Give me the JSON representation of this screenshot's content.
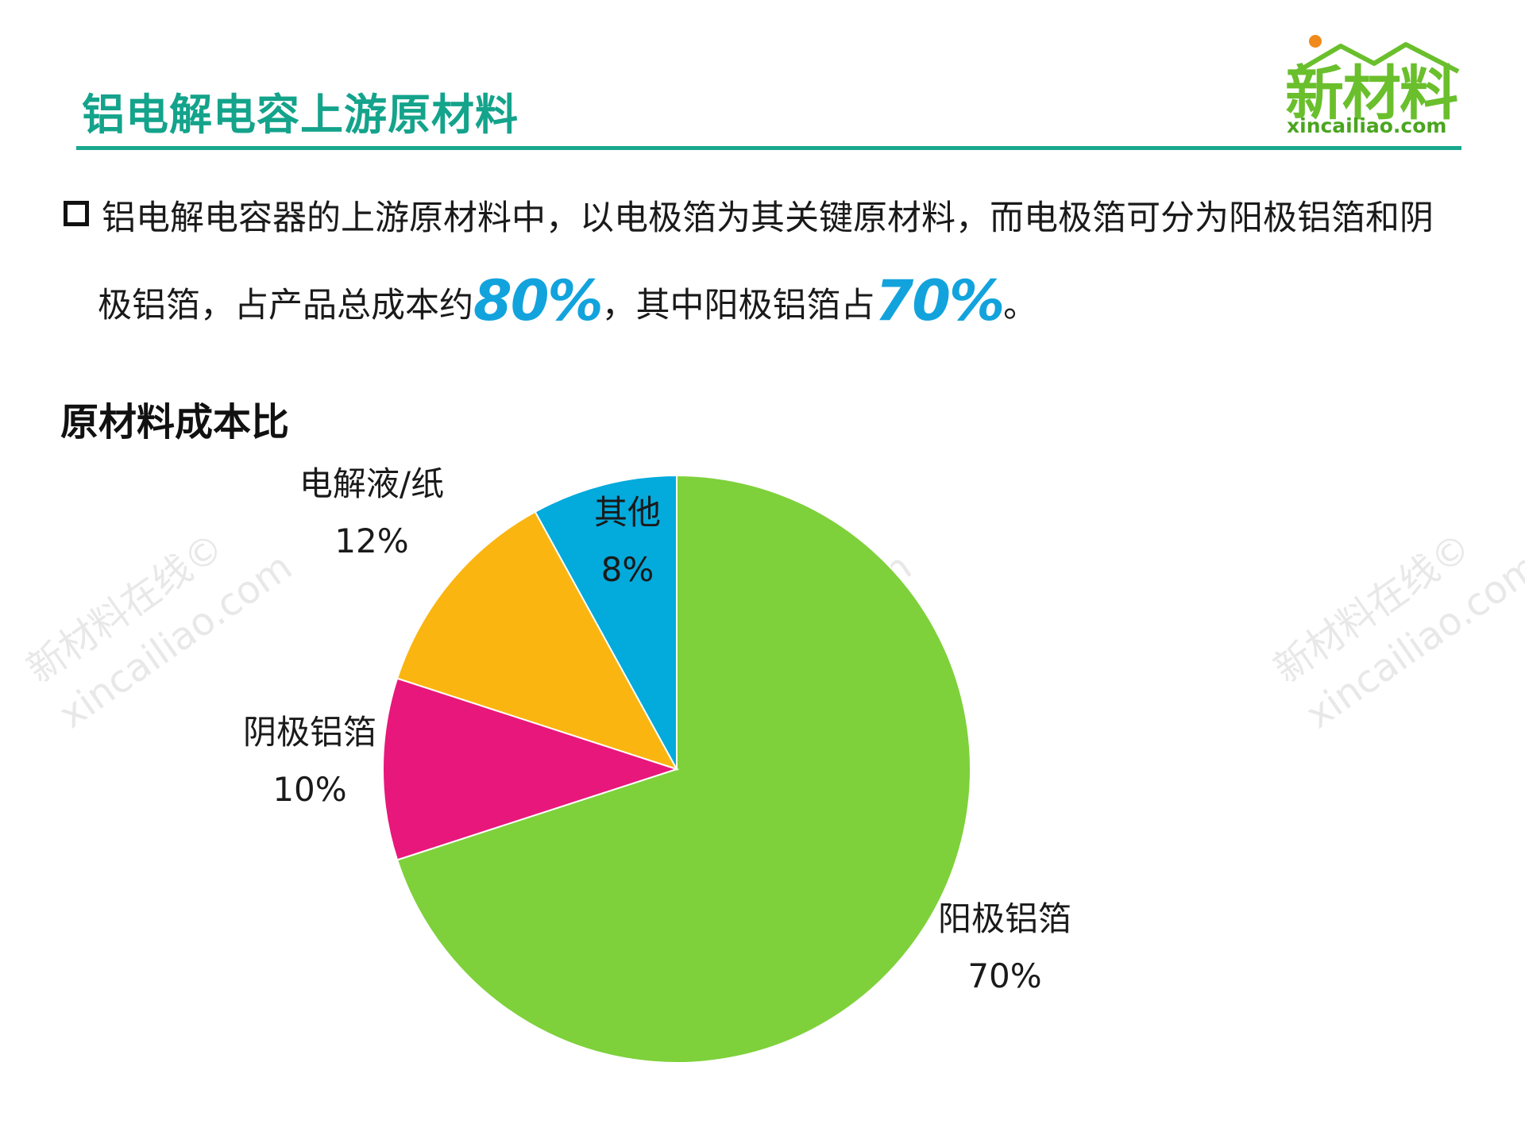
{
  "header": {
    "title": "铝电解电容上游原材料",
    "logo_text": "新材料",
    "logo_url": "xincailiao.com"
  },
  "paragraph": {
    "line1": "铝电解电容器的上游原材料中，以电极箔为其关键原材料，而电极箔可分为阳极铝箔和阴",
    "line2_pre": "极铝箔，占产品总成本约",
    "highlight1": "80%",
    "line2_mid": "，其中阳极铝箔占",
    "highlight2": "70%",
    "line2_end": "。"
  },
  "watermarks": {
    "line1": "新材料在线©",
    "line2": "xincailiao.com"
  },
  "colors": {
    "accent": "#14a38b",
    "highlight": "#12a3dd",
    "logo_green": "#6abf2c",
    "logo_dot": "#f08a1c"
  },
  "chart_data": {
    "type": "pie",
    "title": "原材料成本比",
    "start_angle_deg": 0,
    "direction": "clockwise",
    "slices": [
      {
        "name": "阳极铝箔",
        "value": 70,
        "label": "70%",
        "color": "#7ed13a"
      },
      {
        "name": "阴极铝箔",
        "value": 10,
        "label": "10%",
        "color": "#e8177b"
      },
      {
        "name": "电解液/纸",
        "value": 12,
        "label": "12%",
        "color": "#fbb511"
      },
      {
        "name": "其他",
        "value": 8,
        "label": "8%",
        "color": "#03aadc"
      }
    ]
  }
}
